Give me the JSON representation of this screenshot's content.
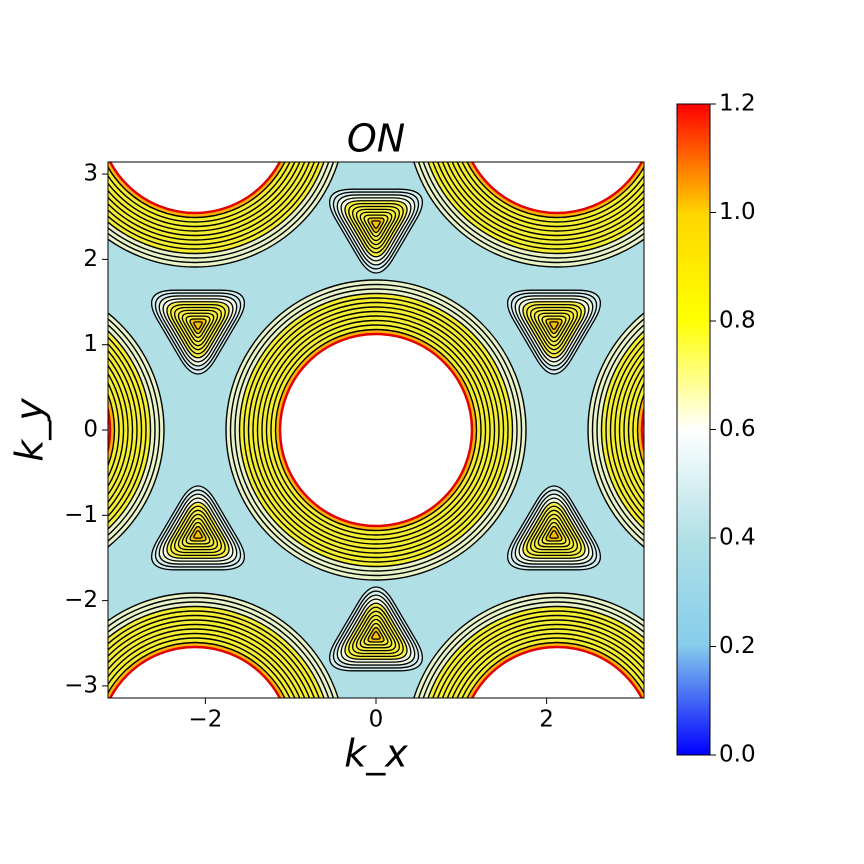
{
  "chart_data": {
    "type": "contour",
    "title": "ON",
    "x_label": "k_x",
    "y_label": "k_y",
    "xlim": [
      -3.14159,
      3.14159
    ],
    "ylim": [
      -3.14159,
      3.14159
    ],
    "xticks": [
      {
        "value": -2,
        "label": "−2"
      },
      0,
      2
    ],
    "yticks": [
      {
        "value": -3,
        "label": "−3"
      },
      {
        "value": -2,
        "label": "−2"
      },
      {
        "value": -1,
        "label": "−1"
      },
      0,
      1,
      2,
      3
    ],
    "colorbar": {
      "lim": [
        0,
        1.2
      ],
      "ticks": [
        {
          "value": 0,
          "label": "0.0"
        },
        {
          "value": 0.2,
          "label": "0.2"
        },
        {
          "value": 0.4,
          "label": "0.4"
        },
        {
          "value": 0.6,
          "label": "0.6"
        },
        {
          "value": 0.8,
          "label": "0.8"
        },
        {
          "value": 1.0,
          "label": "1.0"
        },
        {
          "value": 1.2,
          "label": "1.2"
        }
      ]
    }
  }
}
